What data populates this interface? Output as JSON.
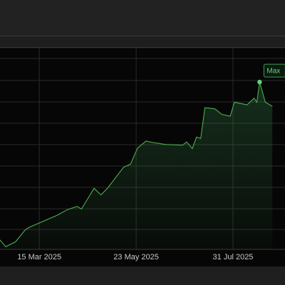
{
  "chart_data": {
    "type": "area",
    "title": "",
    "xlabel": "",
    "ylabel": "",
    "x_ticks": [
      "15 Mar 2025",
      "23 May 2025",
      "31 Jul 2025"
    ],
    "x_range": [
      "2025-02-15",
      "2025-08-28"
    ],
    "ylim": [
      0,
      100
    ],
    "grid": true,
    "legend": "none",
    "series": [
      {
        "color": "#4caf50",
        "points": [
          [
            "2025-02-15",
            4.7
          ],
          [
            "2025-02-19",
            1.3
          ],
          [
            "2025-02-26",
            3.7
          ],
          [
            "2025-03-05",
            9.7
          ],
          [
            "2025-03-08",
            11.0
          ],
          [
            "2025-03-28",
            17.0
          ],
          [
            "2025-04-04",
            19.7
          ],
          [
            "2025-04-11",
            21.3
          ],
          [
            "2025-04-14",
            20.0
          ],
          [
            "2025-04-23",
            30.3
          ],
          [
            "2025-04-28",
            27.0
          ],
          [
            "2025-05-03",
            30.7
          ],
          [
            "2025-05-14",
            40.7
          ],
          [
            "2025-05-19",
            42.3
          ],
          [
            "2025-05-24",
            50.3
          ],
          [
            "2025-05-30",
            53.7
          ],
          [
            "2025-06-04",
            53.0
          ],
          [
            "2025-06-13",
            52.0
          ],
          [
            "2025-06-25",
            51.7
          ],
          [
            "2025-06-28",
            53.3
          ],
          [
            "2025-07-02",
            50.0
          ],
          [
            "2025-07-05",
            55.7
          ],
          [
            "2025-07-08",
            55.0
          ],
          [
            "2025-07-11",
            70.3
          ],
          [
            "2025-07-18",
            69.7
          ],
          [
            "2025-07-23",
            67.0
          ],
          [
            "2025-07-29",
            66.0
          ],
          [
            "2025-08-01",
            73.0
          ],
          [
            "2025-08-10",
            71.7
          ],
          [
            "2025-08-15",
            75.0
          ],
          [
            "2025-08-17",
            73.0
          ],
          [
            "2025-08-19",
            83.0
          ],
          [
            "2025-08-23",
            73.0
          ],
          [
            "2025-08-28",
            71.0
          ]
        ]
      }
    ],
    "annotations": [
      {
        "x": "2025-08-19",
        "y": 83.0,
        "text": "Max"
      }
    ]
  }
}
